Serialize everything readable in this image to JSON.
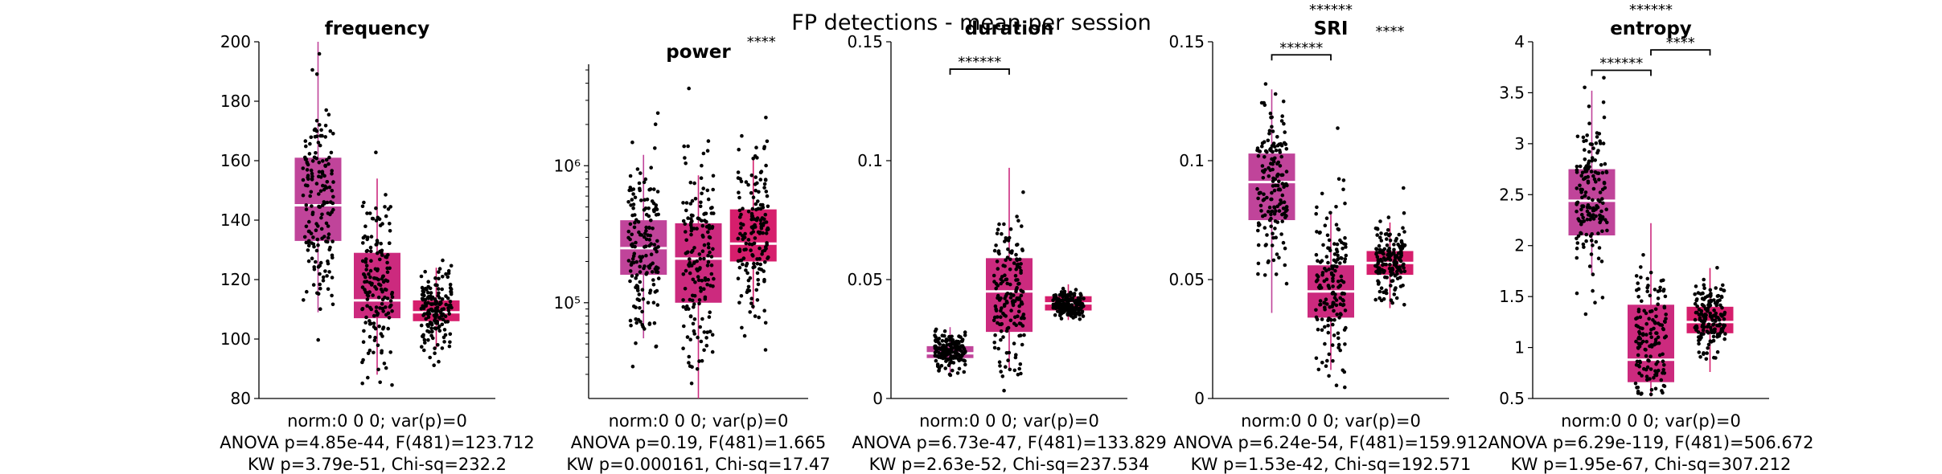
{
  "figure_title": "FP detections - mean per session",
  "chart_data": [
    {
      "type": "box",
      "title": "frequency",
      "yscale": "linear",
      "ylim": [
        80,
        200
      ],
      "yticks": [
        80,
        100,
        120,
        140,
        160,
        180,
        200
      ],
      "yticklabels": [
        "80",
        "100",
        "120",
        "140",
        "160",
        "180",
        "200"
      ],
      "box_colors": [
        "#c0449a",
        "#cc2a7e",
        "#d61e6c"
      ],
      "boxes": [
        {
          "q1": 133,
          "median": 145,
          "q3": 161,
          "wlo": 109,
          "whi": 200,
          "mean": 146,
          "sd": 18,
          "n": 165
        },
        {
          "q1": 107,
          "median": 113,
          "q3": 129,
          "wlo": 88,
          "whi": 154,
          "mean": 118,
          "sd": 16,
          "n": 165
        },
        {
          "q1": 106,
          "median": 109,
          "q3": 113,
          "wlo": 97,
          "whi": 124,
          "mean": 110,
          "sd": 7,
          "n": 165
        }
      ],
      "significance": [],
      "stars_floating": [],
      "stats_lines": [
        "norm:0  0  0; var(p)=0",
        "ANOVA p=4.85e-44, F(481)=123.712",
        "KW p=3.79e-51, Chi-sq=232.2"
      ]
    },
    {
      "type": "box",
      "title": "power",
      "yscale": "log",
      "ylim": [
        20000,
        5500000
      ],
      "yticks": [
        100000,
        1000000
      ],
      "yticklabels": [
        "10⁵",
        "10⁶"
      ],
      "box_colors": [
        "#c0449a",
        "#cc2a7e",
        "#d61e6c"
      ],
      "boxes": [
        {
          "q1": 160000,
          "median": 250000,
          "q3": 400000,
          "wlo": 55000,
          "whi": 1200000,
          "mean": 260000,
          "sd": 0.35,
          "n": 165
        },
        {
          "q1": 100000,
          "median": 210000,
          "q3": 380000,
          "wlo": 20000,
          "whi": 850000,
          "mean": 200000,
          "sd": 0.42,
          "n": 165
        },
        {
          "q1": 200000,
          "median": 270000,
          "q3": 480000,
          "wlo": 90000,
          "whi": 1100000,
          "mean": 300000,
          "sd": 0.3,
          "n": 165
        }
      ],
      "significance": [],
      "stars_floating": [
        {
          "text": "****",
          "near_box": 3
        }
      ],
      "stats_lines": [
        "norm:0  0  0; var(p)=0",
        "ANOVA p=0.19, F(481)=1.665",
        "KW p=0.000161, Chi-sq=17.47"
      ]
    },
    {
      "type": "box",
      "title": "duration",
      "yscale": "linear",
      "ylim": [
        0,
        0.15
      ],
      "yticks": [
        0,
        0.05,
        0.1,
        0.15
      ],
      "yticklabels": [
        "0",
        "0.05",
        "0.1",
        "0.15"
      ],
      "box_colors": [
        "#c0449a",
        "#cc2a7e",
        "#d61e6c"
      ],
      "boxes": [
        {
          "q1": 0.017,
          "median": 0.019,
          "q3": 0.022,
          "wlo": 0.01,
          "whi": 0.03,
          "mean": 0.02,
          "sd": 0.004,
          "n": 165
        },
        {
          "q1": 0.028,
          "median": 0.045,
          "q3": 0.059,
          "wlo": 0.012,
          "whi": 0.097,
          "mean": 0.045,
          "sd": 0.017,
          "n": 165
        },
        {
          "q1": 0.037,
          "median": 0.04,
          "q3": 0.043,
          "wlo": 0.033,
          "whi": 0.048,
          "mean": 0.04,
          "sd": 0.003,
          "n": 165
        }
      ],
      "significance": [
        {
          "from": 1,
          "to": 2,
          "text": "******",
          "y": 0.1385
        }
      ],
      "stars_floating": [],
      "stats_lines": [
        "norm:0  0  0; var(p)=0",
        "ANOVA p=6.73e-47, F(481)=133.829",
        "KW p=2.63e-52, Chi-sq=237.534"
      ]
    },
    {
      "type": "box",
      "title": "SRI",
      "yscale": "linear",
      "ylim": [
        0,
        0.15
      ],
      "yticks": [
        0,
        0.05,
        0.1,
        0.15
      ],
      "yticklabels": [
        "0",
        "0.05",
        "0.1",
        "0.15"
      ],
      "box_colors": [
        "#c0449a",
        "#cc2a7e",
        "#d61e6c"
      ],
      "boxes": [
        {
          "q1": 0.075,
          "median": 0.091,
          "q3": 0.103,
          "wlo": 0.036,
          "whi": 0.13,
          "mean": 0.089,
          "sd": 0.018,
          "n": 165
        },
        {
          "q1": 0.034,
          "median": 0.045,
          "q3": 0.056,
          "wlo": 0.012,
          "whi": 0.078,
          "mean": 0.047,
          "sd": 0.017,
          "n": 165
        },
        {
          "q1": 0.052,
          "median": 0.057,
          "q3": 0.062,
          "wlo": 0.038,
          "whi": 0.074,
          "mean": 0.058,
          "sd": 0.008,
          "n": 165
        }
      ],
      "significance": [
        {
          "from": 1,
          "to": 2,
          "text": "******",
          "y": 0.1445
        }
      ],
      "stars_floating": [
        {
          "text": "******",
          "near_box": 2
        },
        {
          "text": "****",
          "near_box": 3
        }
      ],
      "stats_lines": [
        "norm:0  0  0; var(p)=0",
        "ANOVA p=6.24e-54, F(481)=159.912",
        "KW p=1.53e-42, Chi-sq=192.571"
      ]
    },
    {
      "type": "box",
      "title": "entropy",
      "yscale": "linear",
      "ylim": [
        0.5,
        4
      ],
      "yticks": [
        0.5,
        1,
        1.5,
        2,
        2.5,
        3,
        3.5,
        4
      ],
      "yticklabels": [
        "0.5",
        "1",
        "1.5",
        "2",
        "2.5",
        "3",
        "3.5",
        "4"
      ],
      "box_colors": [
        "#c0449a",
        "#cc2a7e",
        "#d61e6c"
      ],
      "boxes": [
        {
          "q1": 2.1,
          "median": 2.44,
          "q3": 2.75,
          "wlo": 1.72,
          "whi": 3.52,
          "mean": 2.44,
          "sd": 0.42,
          "n": 165
        },
        {
          "q1": 0.66,
          "median": 0.88,
          "q3": 1.42,
          "wlo": 0.52,
          "whi": 2.22,
          "mean": 1.05,
          "sd": 0.45,
          "n": 165
        },
        {
          "q1": 1.14,
          "median": 1.25,
          "q3": 1.4,
          "wlo": 0.76,
          "whi": 1.78,
          "mean": 1.27,
          "sd": 0.18,
          "n": 165
        }
      ],
      "significance": [
        {
          "from": 1,
          "to": 2,
          "text": "******",
          "y": 3.72
        },
        {
          "from": 2,
          "to": 3,
          "text": "****",
          "y": 3.92
        }
      ],
      "stars_floating": [
        {
          "text": "******",
          "near_box": 2
        }
      ],
      "stats_lines": [
        "norm:0  0  0; var(p)=0",
        "ANOVA p=6.29e-119, F(481)=506.672",
        "KW p=1.95e-67, Chi-sq=307.212"
      ]
    }
  ]
}
